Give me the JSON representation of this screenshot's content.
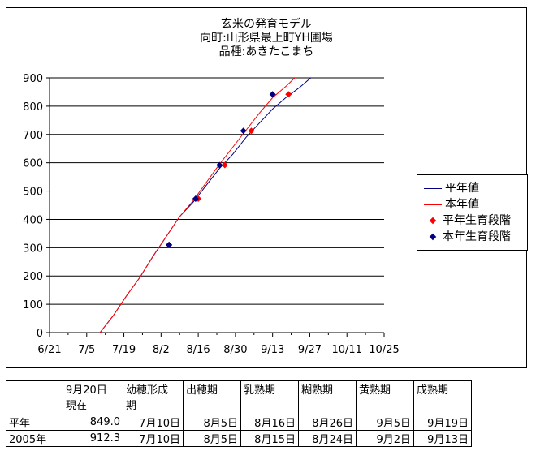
{
  "chart_data": {
    "type": "line",
    "title_lines": [
      "玄米の発育モデル",
      "向町:山形県最上町YH圃場",
      "品種:あきたこまち"
    ],
    "x_tick_labels": [
      "6/21",
      "7/5",
      "7/19",
      "8/2",
      "8/16",
      "8/30",
      "9/13",
      "9/27",
      "10/11",
      "10/25"
    ],
    "x_tick_dates": [
      "06-21",
      "07-05",
      "07-19",
      "08-02",
      "08-16",
      "08-30",
      "09-13",
      "09-27",
      "10-11",
      "10-25"
    ],
    "y_tick_labels": [
      "0",
      "100",
      "200",
      "300",
      "400",
      "500",
      "600",
      "700",
      "800",
      "900"
    ],
    "ylim": [
      0,
      900
    ],
    "grid": "horizontal",
    "legend_position": "right",
    "series": [
      {
        "name": "平年値",
        "type": "line",
        "color": "#000080",
        "points": [
          [
            "07-10",
            0
          ],
          [
            "07-15",
            60
          ],
          [
            "07-20",
            130
          ],
          [
            "07-25",
            195
          ],
          [
            "07-30",
            270
          ],
          [
            "08-04",
            340
          ],
          [
            "08-09",
            410
          ],
          [
            "08-14",
            460
          ],
          [
            "08-19",
            520
          ],
          [
            "08-24",
            580
          ],
          [
            "08-29",
            630
          ],
          [
            "09-03",
            690
          ],
          [
            "09-08",
            740
          ],
          [
            "09-13",
            790
          ],
          [
            "09-18",
            830
          ],
          [
            "09-23",
            865
          ],
          [
            "09-28",
            905
          ]
        ]
      },
      {
        "name": "本年値",
        "type": "line",
        "color": "#ff0000",
        "points": [
          [
            "07-10",
            0
          ],
          [
            "07-15",
            60
          ],
          [
            "07-20",
            130
          ],
          [
            "07-25",
            195
          ],
          [
            "07-30",
            270
          ],
          [
            "08-04",
            340
          ],
          [
            "08-09",
            410
          ],
          [
            "08-14",
            465
          ],
          [
            "08-19",
            530
          ],
          [
            "08-24",
            595
          ],
          [
            "08-29",
            655
          ],
          [
            "09-03",
            715
          ],
          [
            "09-08",
            775
          ],
          [
            "09-13",
            830
          ],
          [
            "09-18",
            870
          ],
          [
            "09-23",
            915
          ]
        ]
      },
      {
        "name": "平年生育段階",
        "type": "marker",
        "color": "#ff0000",
        "points": [
          [
            "08-05",
            310
          ],
          [
            "08-16",
            473
          ],
          [
            "08-26",
            592
          ],
          [
            "09-05",
            713
          ],
          [
            "09-19",
            842
          ]
        ]
      },
      {
        "name": "本年生育段階",
        "type": "marker",
        "color": "#000080",
        "points": [
          [
            "08-05",
            310
          ],
          [
            "08-15",
            473
          ],
          [
            "08-24",
            592
          ],
          [
            "09-02",
            713
          ],
          [
            "09-13",
            842
          ]
        ]
      }
    ]
  },
  "table": {
    "header": [
      "",
      "9月20日\n現在",
      "幼穂形成\n期",
      "出穂期",
      "乳熟期",
      "糊熟期",
      "黄熟期",
      "成熟期"
    ],
    "rows": [
      [
        "平年",
        "849.0",
        "7月10日",
        "8月5日",
        "8月16日",
        "8月26日",
        "9月5日",
        "9月19日"
      ],
      [
        "2005年",
        "912.3",
        "7月10日",
        "8月5日",
        "8月15日",
        "8月24日",
        "9月2日",
        "9月13日"
      ]
    ]
  }
}
